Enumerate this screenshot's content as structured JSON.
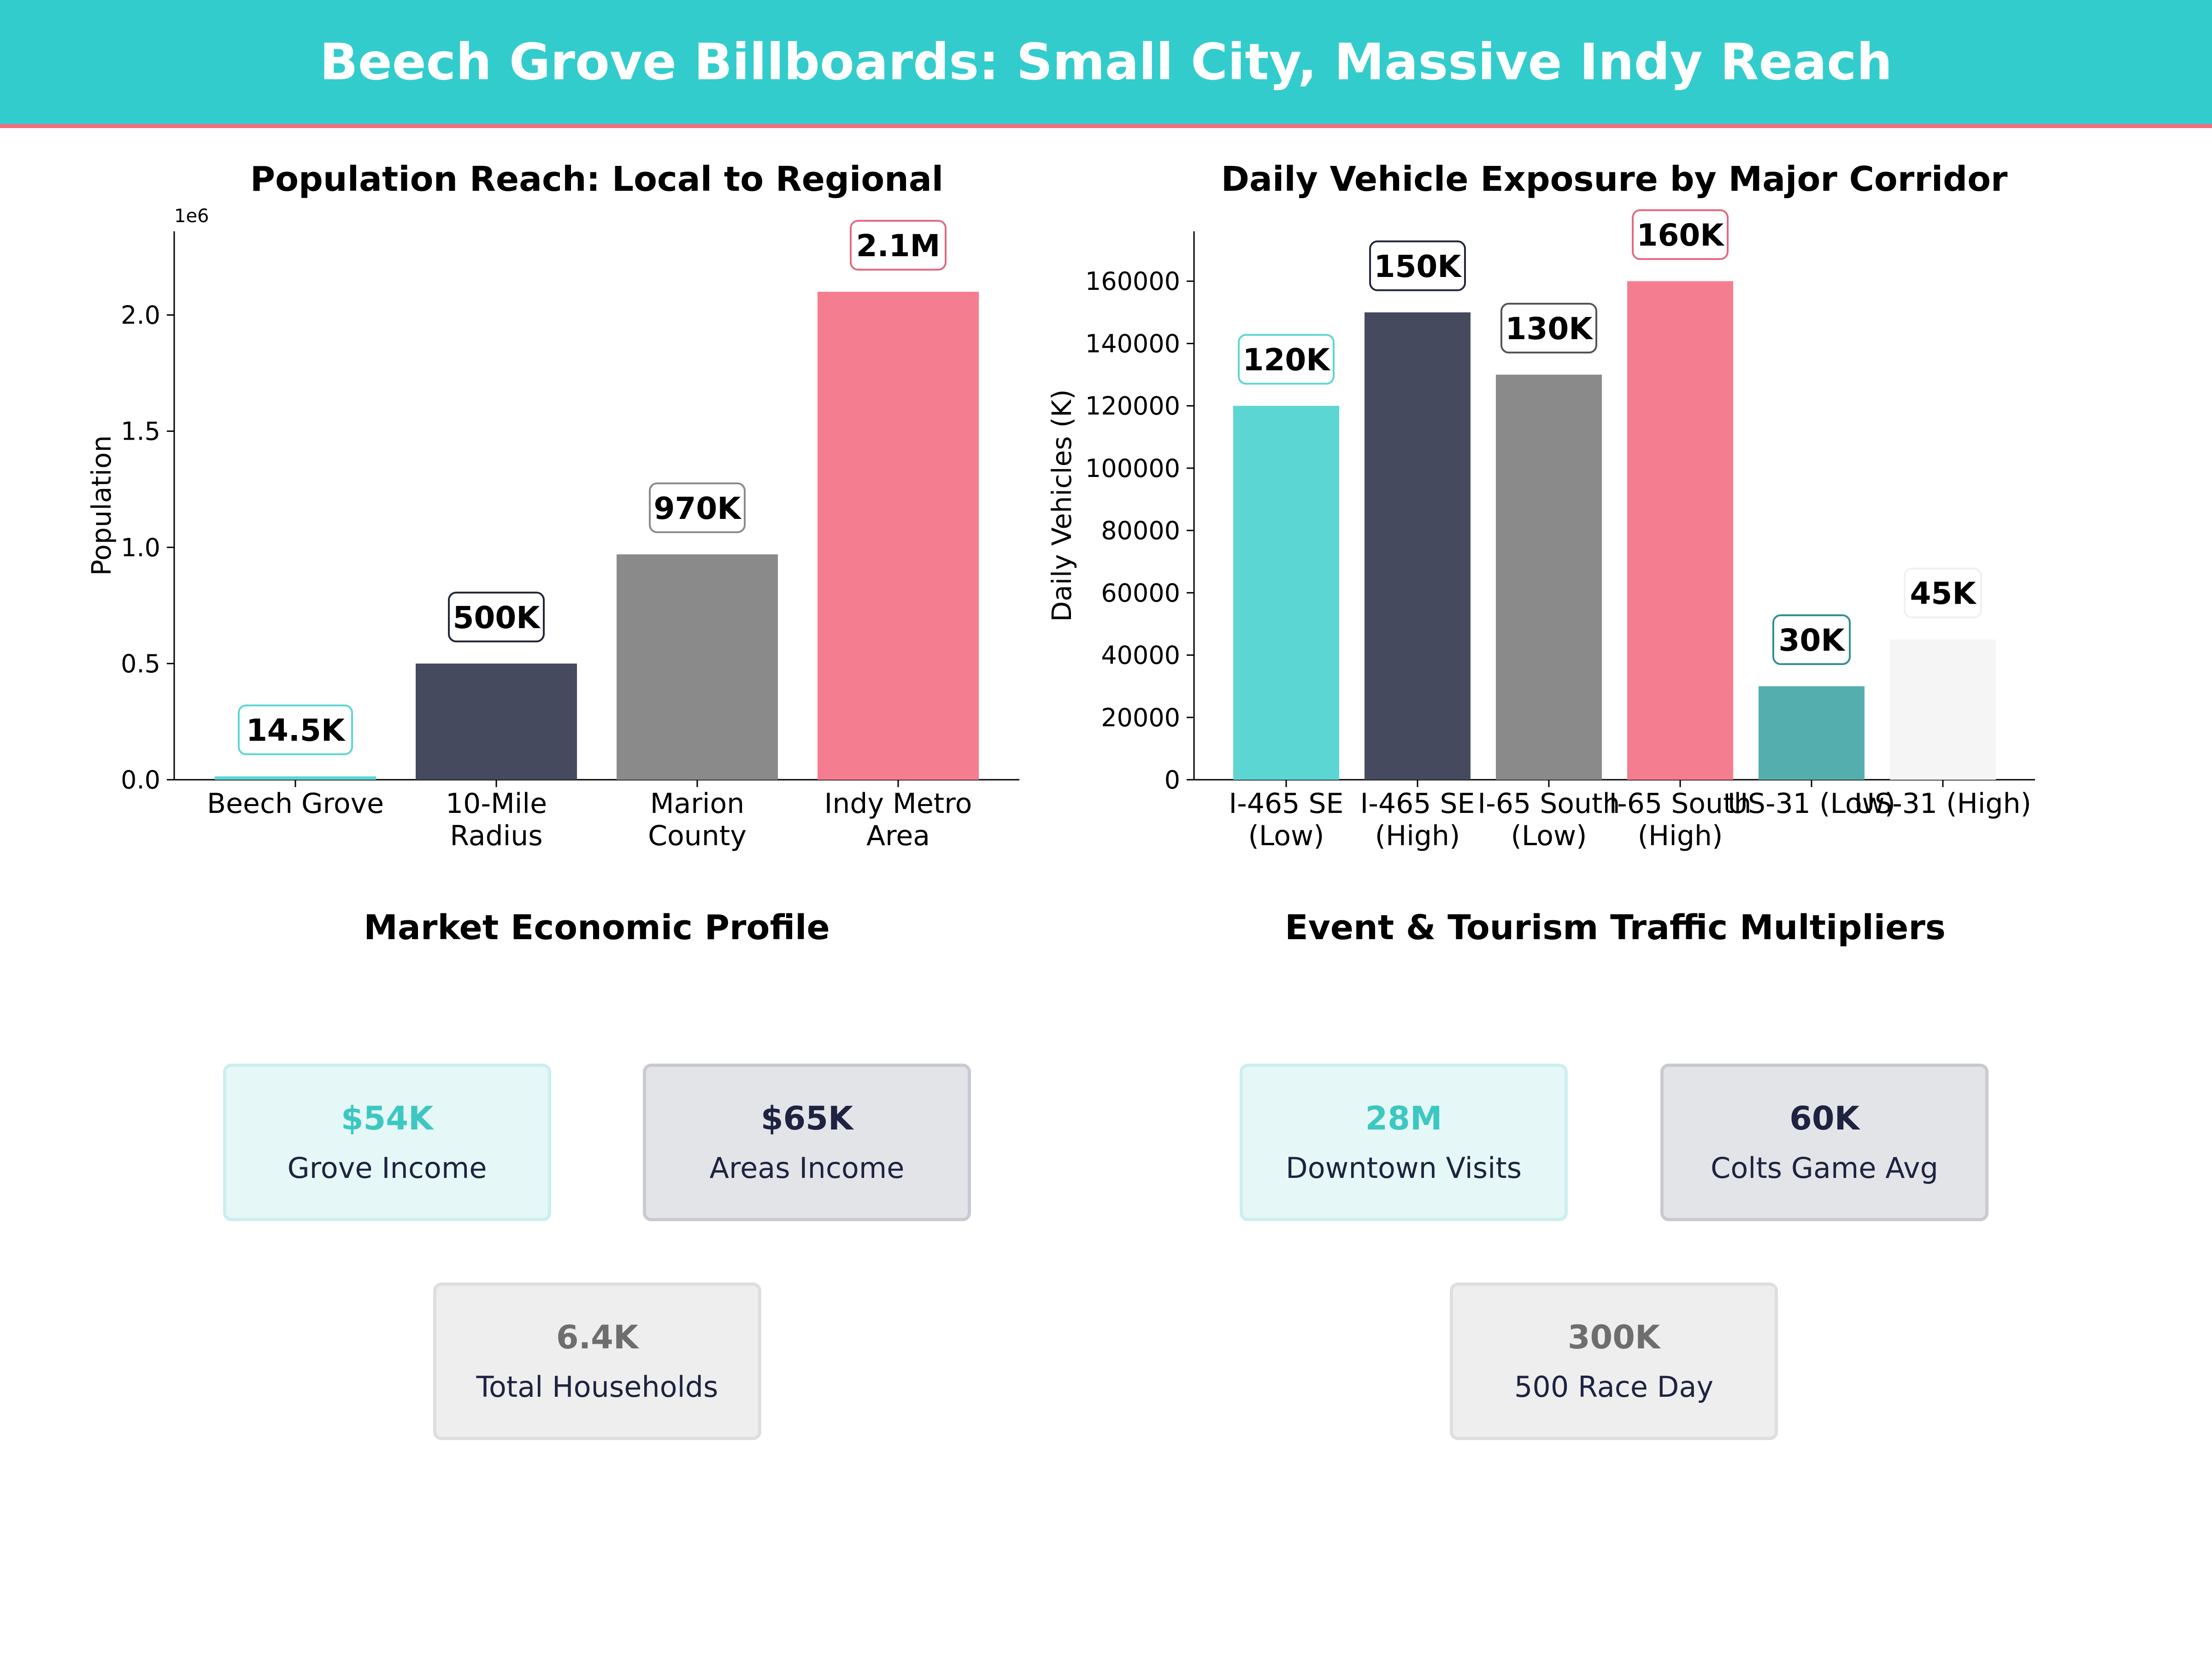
{
  "header": {
    "title": "Beech Grove Billboards: Small City, Massive Indy Reach"
  },
  "colors": {
    "header_bg": "#33cccc",
    "header_border": "#f0707f",
    "teal": "#5cd6d2",
    "navy": "#454a5f",
    "gray": "#8a8a8a",
    "pink": "#f57d90",
    "dark_teal": "#55aeae",
    "light_gray": "#f5f5f5"
  },
  "chart_data": [
    {
      "type": "bar",
      "title": "Population Reach: Local to Regional",
      "xlabel": "",
      "ylabel": "Population",
      "y_offset_label": "1e6",
      "categories": [
        "Beech Grove",
        "10-Mile\nRadius",
        "Marion\nCounty",
        "Indy Metro\nArea"
      ],
      "values": [
        14500,
        500000,
        970000,
        2100000
      ],
      "data_labels": [
        "14.5K",
        "500K",
        "970K",
        "2.1M"
      ],
      "bar_colors": [
        "#5cd6d2",
        "#454a5f",
        "#8a8a8a",
        "#f57d90"
      ],
      "label_border_colors": [
        "#5cd6d2",
        "#22263a",
        "#8a8a8a",
        "#e06a7f"
      ],
      "ylim": [
        0,
        2360000
      ],
      "yticks": [
        0,
        500000,
        1000000,
        1500000,
        2000000
      ],
      "ytick_labels": [
        "0.0",
        "0.5",
        "1.0",
        "1.5",
        "2.0"
      ],
      "grid": false
    },
    {
      "type": "bar",
      "title": "Daily Vehicle Exposure by Major Corridor",
      "xlabel": "",
      "ylabel": "Daily Vehicles (K)",
      "categories": [
        "I-465 SE\n(Low)",
        "I-465 SE\n(High)",
        "I-65 South\n(Low)",
        "I-65 South\n(High)",
        "US-31 (Low)",
        "US-31 (High)"
      ],
      "values": [
        120000,
        150000,
        130000,
        160000,
        30000,
        45000
      ],
      "data_labels": [
        "120K",
        "150K",
        "130K",
        "160K",
        "30K",
        "45K"
      ],
      "bar_colors": [
        "#5cd6d2",
        "#454a5f",
        "#8a8a8a",
        "#f57d90",
        "#55aeae",
        "#f5f5f5"
      ],
      "label_border_colors": [
        "#5cd6d2",
        "#22263a",
        "#555555",
        "#e06a7f",
        "#2f8f8f",
        "#f0f0f0"
      ],
      "ylim": [
        0,
        176000
      ],
      "yticks": [
        0,
        20000,
        40000,
        60000,
        80000,
        100000,
        120000,
        140000,
        160000
      ],
      "ytick_labels": [
        "0",
        "20000",
        "40000",
        "60000",
        "80000",
        "100000",
        "120000",
        "140000",
        "160000"
      ],
      "grid": false
    }
  ],
  "economic": {
    "title": "Market Economic Profile",
    "cards": [
      {
        "value": "$54K",
        "label": "Grove Income"
      },
      {
        "value": "$65K",
        "label": "Areas Income"
      },
      {
        "value": "6.4K",
        "label": "Total Households"
      }
    ]
  },
  "events": {
    "title": "Event & Tourism Traffic Multipliers",
    "cards": [
      {
        "value": "28M",
        "label": "Downtown Visits"
      },
      {
        "value": "60K",
        "label": "Colts Game Avg"
      },
      {
        "value": "300K",
        "label": "500 Race Day"
      }
    ]
  }
}
